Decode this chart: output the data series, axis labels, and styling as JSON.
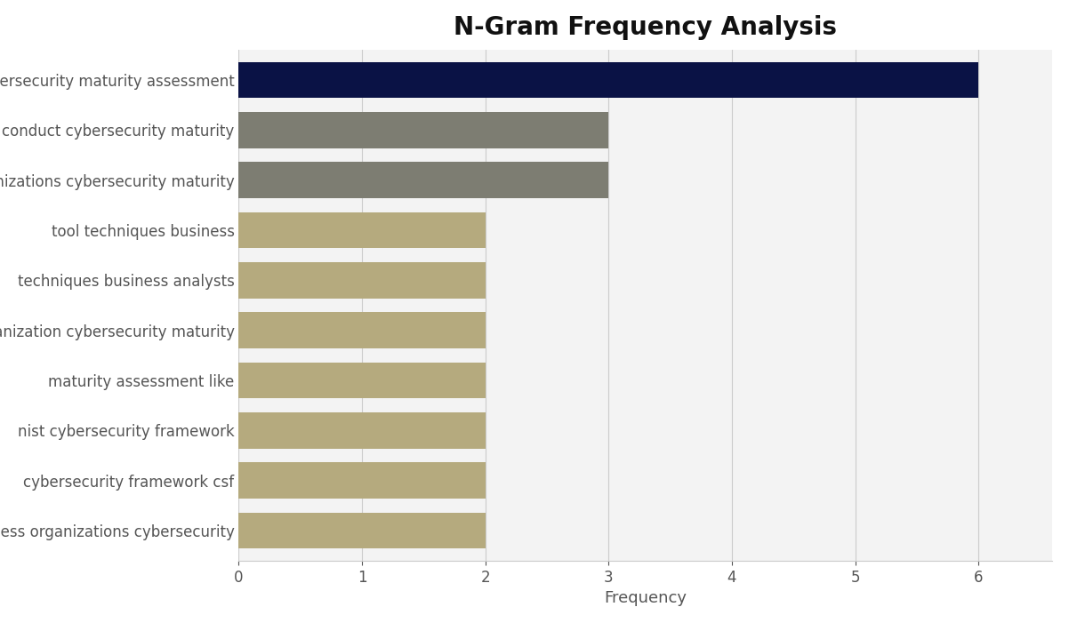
{
  "title": "N-Gram Frequency Analysis",
  "xlabel": "Frequency",
  "categories": [
    "assess organizations cybersecurity",
    "cybersecurity framework csf",
    "nist cybersecurity framework",
    "maturity assessment like",
    "organization cybersecurity maturity",
    "techniques business analysts",
    "tool techniques business",
    "organizations cybersecurity maturity",
    "conduct cybersecurity maturity",
    "cybersecurity maturity assessment"
  ],
  "values": [
    2,
    2,
    2,
    2,
    2,
    2,
    2,
    3,
    3,
    6
  ],
  "bar_colors": [
    "#b5aa7e",
    "#b5aa7e",
    "#b5aa7e",
    "#b5aa7e",
    "#b5aa7e",
    "#b5aa7e",
    "#b5aa7e",
    "#7d7d72",
    "#7d7d72",
    "#0a1245"
  ],
  "fig_background_color": "#ffffff",
  "plot_background_color": "#f3f3f3",
  "title_fontsize": 20,
  "label_fontsize": 13,
  "tick_fontsize": 12,
  "xlim": [
    0,
    6.6
  ],
  "xticks": [
    0,
    1,
    2,
    3,
    4,
    5,
    6
  ]
}
